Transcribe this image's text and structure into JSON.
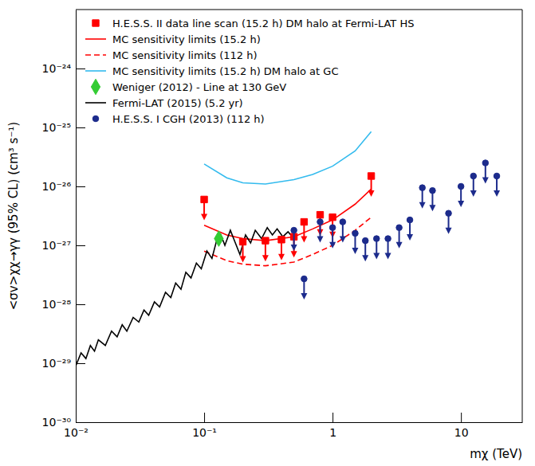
{
  "chart_data": {
    "type": "scatter",
    "x_label": "mχ (TeV)",
    "y_label": "<σv>χχ→γγ (95% CL) (cm³ s⁻¹)",
    "log": true,
    "legend": "top-left",
    "xlim": [
      0.01,
      30
    ],
    "ylim": [
      1e-30,
      1e-23
    ],
    "xticks": [
      {
        "value": 0.01,
        "label": "10⁻²"
      },
      {
        "value": 0.1,
        "label": "10⁻¹"
      },
      1,
      10
    ],
    "yticks": [
      {
        "value": 1e-30,
        "label": "10⁻³⁰"
      },
      {
        "value": 1e-29,
        "label": "10⁻²⁹"
      },
      {
        "value": 1e-28,
        "label": "10⁻²⁸"
      },
      {
        "value": 1e-27,
        "label": "10⁻²⁷"
      },
      {
        "value": 1e-26,
        "label": "10⁻²⁶"
      },
      {
        "value": 1e-25,
        "label": "10⁻²⁵"
      },
      {
        "value": 1e-24,
        "label": "10⁻²⁴"
      }
    ],
    "series": [
      {
        "name": "H.E.S.S. II data line scan (15.2 h) DM halo at Fermi-LAT HS",
        "type": "scatter",
        "marker": "square-arrow",
        "color": "#ff0000",
        "x": [
          0.1,
          0.2,
          0.3,
          0.4,
          0.5,
          0.6,
          0.8,
          1.0,
          2.0
        ],
        "values": [
          6e-27,
          1.15e-27,
          1.2e-27,
          1.25e-27,
          1.4e-27,
          2.5e-27,
          3.3e-27,
          3e-27,
          1.5e-26
        ]
      },
      {
        "name": "MC sensitivity limits (15.2 h)",
        "type": "line",
        "line_style": "solid",
        "color": "#ff0000",
        "x": [
          0.1,
          0.15,
          0.2,
          0.3,
          0.5,
          0.7,
          1.0,
          1.5,
          2.0
        ],
        "values": [
          2.2e-27,
          1.5e-27,
          1.3e-27,
          1.2e-27,
          1.4e-27,
          1.9e-27,
          2.7e-27,
          5e-27,
          9e-27
        ]
      },
      {
        "name": "MC sensitivity limits (112 h)",
        "type": "line",
        "line_style": "dashed",
        "color": "#ff0000",
        "x": [
          0.1,
          0.15,
          0.2,
          0.3,
          0.5,
          0.7,
          1.0,
          1.5,
          2.0
        ],
        "values": [
          8e-28,
          5.5e-28,
          4.8e-28,
          4.5e-28,
          5.2e-28,
          7e-28,
          1e-27,
          1.8e-27,
          3e-27
        ]
      },
      {
        "name": "MC sensitivity limits (15.2 h) DM halo at GC",
        "type": "line",
        "line_style": "solid",
        "color": "#33bbee",
        "x": [
          0.1,
          0.15,
          0.2,
          0.3,
          0.5,
          0.7,
          1.0,
          1.5,
          2.0
        ],
        "values": [
          2.4e-26,
          1.4e-26,
          1.15e-26,
          1.1e-26,
          1.3e-26,
          1.6e-26,
          2.2e-26,
          4e-26,
          8.5e-26
        ]
      },
      {
        "name": "Weniger (2012) - Line at 130 GeV",
        "type": "scatter",
        "marker": "diamond",
        "color": "#33cc33",
        "x": [
          0.13
        ],
        "values": [
          1.3e-27
        ]
      },
      {
        "name": "Fermi-LAT (2015) (5.2 yr)",
        "type": "line",
        "line_style": "solid",
        "color": "#000000",
        "x": [
          0.01,
          0.011,
          0.012,
          0.013,
          0.014,
          0.015,
          0.017,
          0.019,
          0.021,
          0.023,
          0.025,
          0.028,
          0.031,
          0.034,
          0.037,
          0.041,
          0.045,
          0.05,
          0.055,
          0.06,
          0.066,
          0.072,
          0.079,
          0.087,
          0.095,
          0.105,
          0.115,
          0.125,
          0.135,
          0.145,
          0.16,
          0.175,
          0.19,
          0.21,
          0.23,
          0.25,
          0.28,
          0.31,
          0.34,
          0.37,
          0.41,
          0.45,
          0.5
        ],
        "values": [
          9e-30,
          1.5e-29,
          1.2e-29,
          2e-29,
          1.6e-29,
          2.5e-29,
          2e-29,
          3.5e-29,
          2.8e-29,
          4.5e-29,
          3.5e-29,
          6e-29,
          5e-29,
          8e-29,
          6.5e-29,
          1.1e-28,
          9e-29,
          1.6e-28,
          1.3e-28,
          2.3e-28,
          1.8e-28,
          3.5e-28,
          2.8e-28,
          5e-28,
          4e-28,
          8e-28,
          6e-28,
          1.2e-27,
          1.5e-27,
          1e-27,
          1.8e-27,
          1.1e-27,
          7e-28,
          1.5e-27,
          1.1e-27,
          1.8e-27,
          1.3e-27,
          2e-27,
          1.5e-27,
          1.9e-27,
          1.4e-27,
          1.7e-27,
          1.3e-27
        ]
      },
      {
        "name": "H.E.S.S. I CGH (2013) (112 h)",
        "type": "scatter",
        "marker": "circle-arrow",
        "color": "#1c2b8c",
        "x": [
          0.5,
          0.6,
          0.8,
          1.0,
          1.2,
          1.5,
          1.8,
          2.2,
          2.7,
          3.3,
          4.0,
          5.0,
          6.0,
          8.0,
          10.0,
          12.5,
          15.5,
          19.0
        ],
        "values": [
          1.8e-27,
          2.7e-28,
          2.5e-27,
          2e-27,
          2.5e-27,
          1.6e-27,
          1.2e-27,
          1.3e-27,
          1.3e-27,
          2e-27,
          2.7e-27,
          9.5e-27,
          8.5e-27,
          3.5e-27,
          1e-26,
          1.5e-26,
          2.5e-26,
          1.5e-26
        ]
      }
    ]
  }
}
